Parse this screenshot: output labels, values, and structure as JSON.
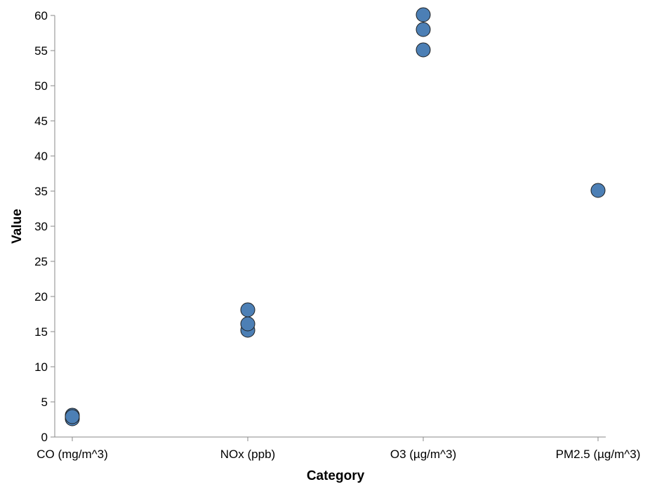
{
  "chart_data": {
    "type": "scatter",
    "title": "",
    "xlabel": "Category",
    "ylabel": "Value",
    "categories": [
      "CO (mg/m^3)",
      "NOx (ppb)",
      "O3 (µg/m^3)",
      "PM2.5 (µg/m^3)"
    ],
    "ylim": [
      0,
      60
    ],
    "yticks": [
      0,
      5,
      10,
      15,
      20,
      25,
      30,
      35,
      40,
      45,
      50,
      55,
      60
    ],
    "grid": false,
    "points": [
      {
        "x": "CO (mg/m^3)",
        "y": 2.6
      },
      {
        "x": "CO (mg/m^3)",
        "y": 3.1
      },
      {
        "x": "CO (mg/m^3)",
        "y": 2.9
      },
      {
        "x": "NOx (ppb)",
        "y": 15.2
      },
      {
        "x": "NOx (ppb)",
        "y": 16.1
      },
      {
        "x": "NOx (ppb)",
        "y": 18.1
      },
      {
        "x": "O3 (µg/m^3)",
        "y": 55.1
      },
      {
        "x": "O3 (µg/m^3)",
        "y": 58.0
      },
      {
        "x": "O3 (µg/m^3)",
        "y": 60.1
      },
      {
        "x": "PM2.5 (µg/m^3)",
        "y": 35.1
      }
    ],
    "colors": {
      "point_fill": "#4c7fb5",
      "point_stroke": "#1f1f1f",
      "axis": "#888888",
      "text": "#000000"
    }
  }
}
